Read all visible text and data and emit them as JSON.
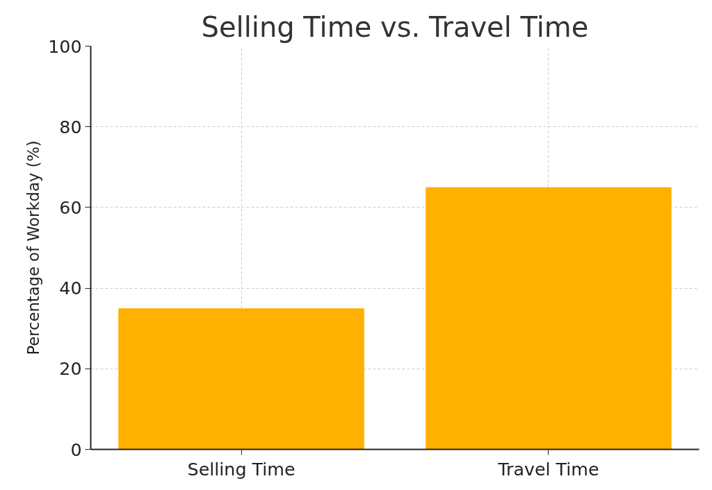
{
  "chart_data": {
    "type": "bar",
    "title": "Selling Time vs. Travel Time",
    "ylabel": "Percentage of Workday (%)",
    "categories": [
      "Selling Time",
      "Travel Time"
    ],
    "values": [
      35,
      65
    ],
    "color": "#ffb000",
    "ylim": [
      0,
      100
    ],
    "yticks": [
      0,
      20,
      40,
      60,
      80,
      100
    ],
    "grid": true
  }
}
